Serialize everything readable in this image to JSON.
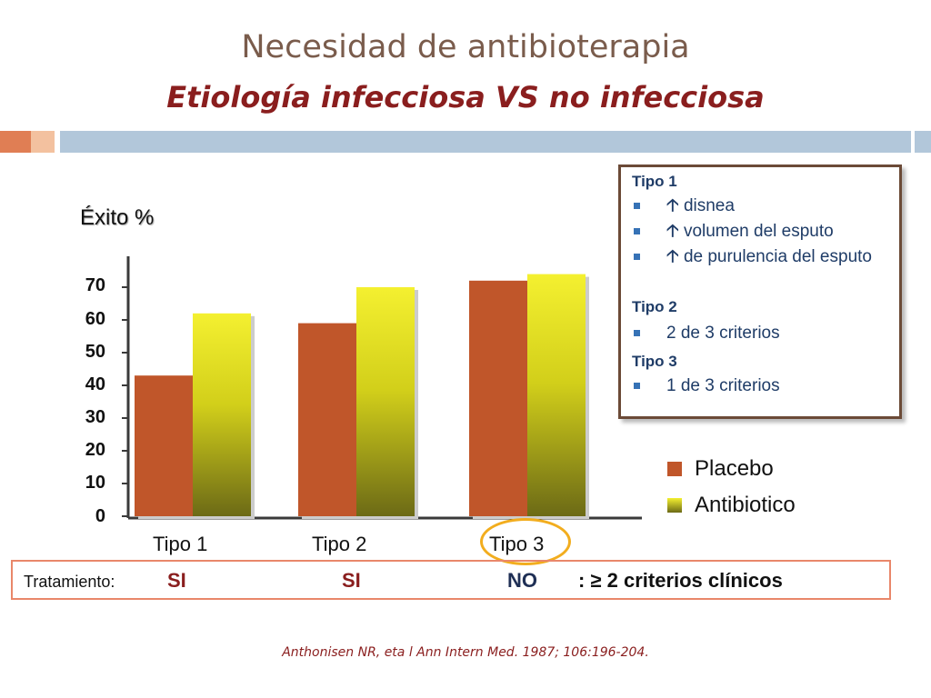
{
  "title": "Necesidad de antibioterapia",
  "subtitle": "Etiología infecciosa VS no infecciosa",
  "chart_data": {
    "type": "bar",
    "ylabel": "Éxito %",
    "ylim": [
      0,
      70
    ],
    "yticks": [
      "70",
      "60",
      "50",
      "40",
      "30",
      "20",
      "10",
      "0"
    ],
    "categories": [
      "Tipo 1",
      "Tipo 2",
      "Tipo 3"
    ],
    "series": [
      {
        "name": "Placebo",
        "values": [
          43,
          59,
          72
        ],
        "color": "#c0562a"
      },
      {
        "name": "Antibiotico",
        "values": [
          62,
          70,
          74
        ],
        "color": "#e8e22a"
      }
    ],
    "legend": "right"
  },
  "infobox": {
    "tipo1": {
      "title": "Tipo 1",
      "items": [
        "disnea",
        "volumen del esputo",
        "de purulencia del esputo"
      ],
      "arrow": "🡡"
    },
    "tipo2": {
      "title": "Tipo 2",
      "items": [
        "2 de 3 criterios"
      ]
    },
    "tipo3": {
      "title": "Tipo 3",
      "items": [
        "1 de 3 criterios"
      ]
    }
  },
  "treatment": {
    "label": "Tratamiento:",
    "values": [
      "SI",
      "SI",
      "NO"
    ],
    "criteria": ": ≥ 2 criterios clínicos",
    "colors": {
      "si": "#8a1e1e",
      "no": "#1f2f55"
    }
  },
  "reference": "Anthonisen NR, eta l Ann Intern Med. 1987; 106:196-204."
}
